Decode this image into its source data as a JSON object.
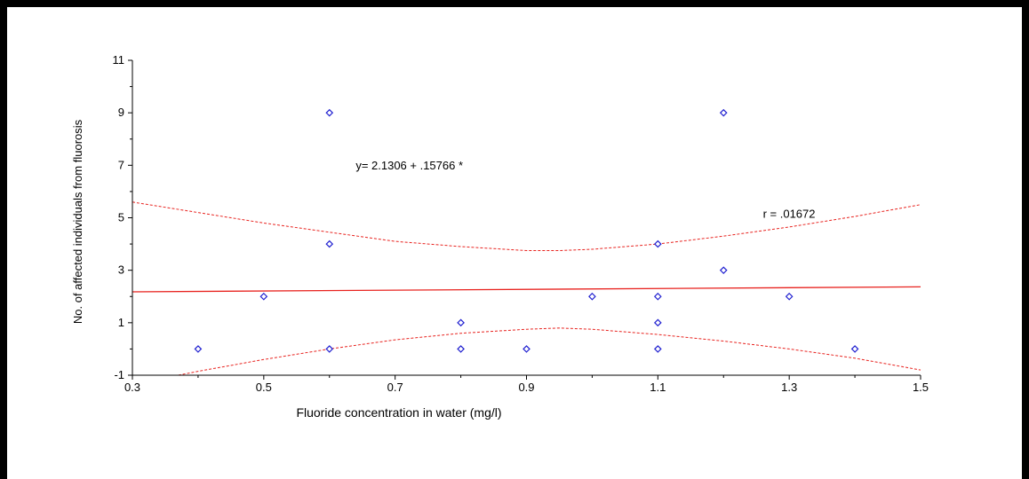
{
  "chart_data": {
    "type": "scatter",
    "xlabel": "Fluoride concentration in water (mg/l)",
    "ylabel": "No. of affected individuals from fluorosis",
    "xlim": [
      0.3,
      1.5
    ],
    "ylim": [
      -1,
      11
    ],
    "xticks": [
      0.3,
      0.5,
      0.7,
      0.9,
      1.1,
      1.3,
      1.5
    ],
    "yticks": [
      -1,
      1,
      3,
      5,
      7,
      9,
      11
    ],
    "xtick_labels": [
      "0.3",
      "0.5",
      "0.7",
      "0.9",
      "1.1",
      "1.3",
      "1.5"
    ],
    "ytick_labels": [
      "-1",
      "1",
      "3",
      "5",
      "7",
      "9",
      "11"
    ],
    "grid": false,
    "points": [
      {
        "x": 0.4,
        "y": 0
      },
      {
        "x": 0.5,
        "y": 2
      },
      {
        "x": 0.6,
        "y": 9
      },
      {
        "x": 0.6,
        "y": 4
      },
      {
        "x": 0.6,
        "y": 0
      },
      {
        "x": 0.8,
        "y": 1
      },
      {
        "x": 0.8,
        "y": 0
      },
      {
        "x": 0.9,
        "y": 0
      },
      {
        "x": 1.0,
        "y": 2
      },
      {
        "x": 1.1,
        "y": 4
      },
      {
        "x": 1.1,
        "y": 2
      },
      {
        "x": 1.1,
        "y": 1
      },
      {
        "x": 1.1,
        "y": 0
      },
      {
        "x": 1.2,
        "y": 9
      },
      {
        "x": 1.2,
        "y": 3
      },
      {
        "x": 1.3,
        "y": 2
      },
      {
        "x": 1.4,
        "y": 0
      }
    ],
    "regression": {
      "intercept": 2.1306,
      "slope": 0.15766
    },
    "confidence_band": {
      "upper": [
        [
          0.3,
          5.6
        ],
        [
          0.4,
          5.2
        ],
        [
          0.5,
          4.8
        ],
        [
          0.6,
          4.45
        ],
        [
          0.7,
          4.1
        ],
        [
          0.8,
          3.9
        ],
        [
          0.9,
          3.75
        ],
        [
          0.95,
          3.75
        ],
        [
          1.0,
          3.8
        ],
        [
          1.1,
          4.0
        ],
        [
          1.2,
          4.3
        ],
        [
          1.3,
          4.65
        ],
        [
          1.4,
          5.05
        ],
        [
          1.5,
          5.5
        ]
      ],
      "lower": [
        [
          0.37,
          -1.0
        ],
        [
          0.4,
          -0.85
        ],
        [
          0.5,
          -0.4
        ],
        [
          0.6,
          0.0
        ],
        [
          0.7,
          0.35
        ],
        [
          0.8,
          0.6
        ],
        [
          0.9,
          0.75
        ],
        [
          0.95,
          0.8
        ],
        [
          1.0,
          0.75
        ],
        [
          1.1,
          0.55
        ],
        [
          1.2,
          0.3
        ],
        [
          1.3,
          0.0
        ],
        [
          1.4,
          -0.35
        ],
        [
          1.5,
          -0.8
        ]
      ]
    },
    "annotations": [
      {
        "text": "y= 2.1306 + .15766 *",
        "x": 0.64,
        "y": 6.85
      },
      {
        "text": "r = .01672",
        "x": 1.26,
        "y": 5.0
      }
    ],
    "colors": {
      "points": "#1f1fd0",
      "regression": "#e8231f",
      "band": "#e8231f",
      "axes": "#000000"
    }
  }
}
